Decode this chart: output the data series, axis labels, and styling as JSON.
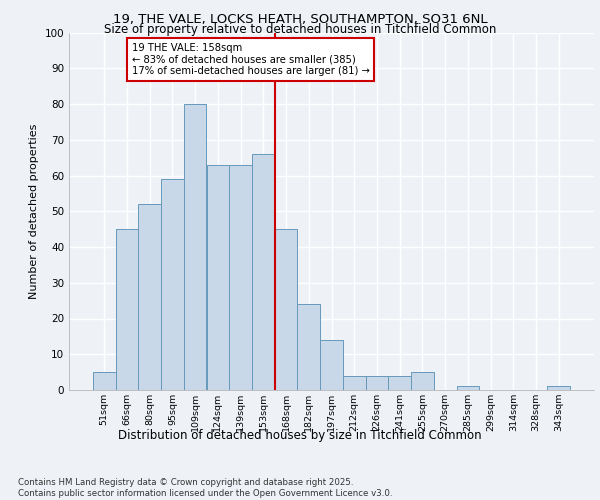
{
  "title1": "19, THE VALE, LOCKS HEATH, SOUTHAMPTON, SO31 6NL",
  "title2": "Size of property relative to detached houses in Titchfield Common",
  "xlabel": "Distribution of detached houses by size in Titchfield Common",
  "ylabel": "Number of detached properties",
  "categories": [
    "51sqm",
    "66sqm",
    "80sqm",
    "95sqm",
    "109sqm",
    "124sqm",
    "139sqm",
    "153sqm",
    "168sqm",
    "182sqm",
    "197sqm",
    "212sqm",
    "226sqm",
    "241sqm",
    "255sqm",
    "270sqm",
    "285sqm",
    "299sqm",
    "314sqm",
    "328sqm",
    "343sqm"
  ],
  "values": [
    5,
    45,
    52,
    59,
    80,
    63,
    63,
    66,
    45,
    24,
    14,
    4,
    4,
    4,
    5,
    0,
    1,
    0,
    0,
    0,
    1
  ],
  "bar_color": "#c8d8e8",
  "bar_edge_color": "#6699bb",
  "annotation_text": "19 THE VALE: 158sqm\n← 83% of detached houses are smaller (385)\n17% of semi-detached houses are larger (81) →",
  "annotation_box_color": "#ffffff",
  "annotation_box_edge": "#cc0000",
  "vline_color": "#cc0000",
  "footer1": "Contains HM Land Registry data © Crown copyright and database right 2025.",
  "footer2": "Contains public sector information licensed under the Open Government Licence v3.0.",
  "bg_color": "#eef2f7",
  "plot_bg_color": "#eef2f7",
  "grid_color": "#ffffff",
  "ylim": [
    0,
    100
  ],
  "yticks": [
    0,
    10,
    20,
    30,
    40,
    50,
    60,
    70,
    80,
    90,
    100
  ],
  "vline_x": 7.5
}
